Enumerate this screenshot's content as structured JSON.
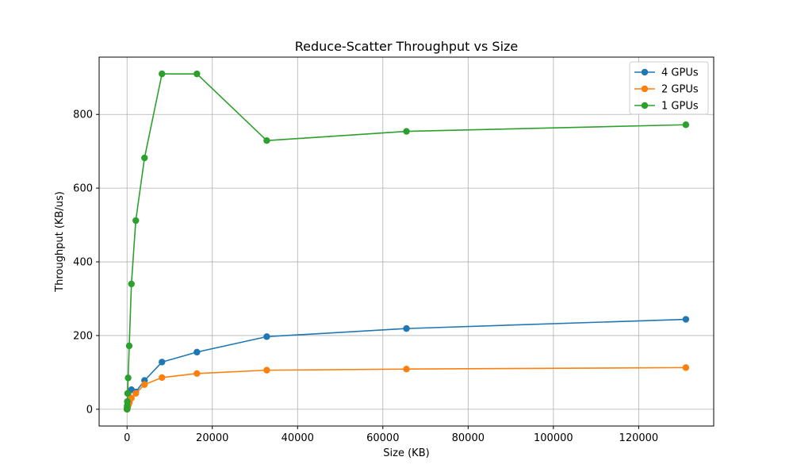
{
  "chart_data": {
    "type": "line",
    "title": "Reduce-Scatter Throughput vs Size",
    "xlabel": "Size (KB)",
    "ylabel": "Throughput (KB/us)",
    "xlim": [
      -6550,
      137600
    ],
    "ylim": [
      -45.5,
      955.5
    ],
    "xticks": [
      0,
      20000,
      40000,
      60000,
      80000,
      100000,
      120000
    ],
    "yticks": [
      0,
      200,
      400,
      600,
      800
    ],
    "grid": true,
    "legend_position": "top-right",
    "series": [
      {
        "name": "4 GPUs",
        "color": "#1f77b4",
        "x": [
          1,
          2,
          4,
          8,
          16,
          32,
          64,
          128,
          256,
          512,
          1024,
          2048,
          4096,
          8192,
          16384,
          32768,
          65536,
          131072
        ],
        "y": [
          0.2,
          0.3,
          0.5,
          0.9,
          1.5,
          2.5,
          4,
          7,
          12,
          20,
          53,
          47,
          78,
          128,
          155,
          197,
          219,
          244
        ]
      },
      {
        "name": "2 GPUs",
        "color": "#ff7f0e",
        "x": [
          1,
          2,
          4,
          8,
          16,
          32,
          64,
          128,
          256,
          512,
          1024,
          2048,
          4096,
          8192,
          16384,
          32768,
          65536,
          131072
        ],
        "y": [
          0.1,
          0.2,
          0.4,
          0.7,
          1.2,
          2,
          3.5,
          6,
          10,
          17,
          30,
          43,
          67,
          86,
          97,
          106,
          109,
          113
        ]
      },
      {
        "name": "1 GPUs",
        "color": "#2ca02c",
        "x": [
          1,
          2,
          4,
          8,
          16,
          32,
          64,
          128,
          256,
          512,
          1024,
          2048,
          4096,
          8192,
          16384,
          32768,
          65536,
          131072
        ],
        "y": [
          0.3,
          0.6,
          1.2,
          2.5,
          5,
          10,
          21,
          43,
          85,
          172,
          340,
          512,
          682,
          910,
          910,
          729,
          754,
          772
        ]
      }
    ]
  }
}
